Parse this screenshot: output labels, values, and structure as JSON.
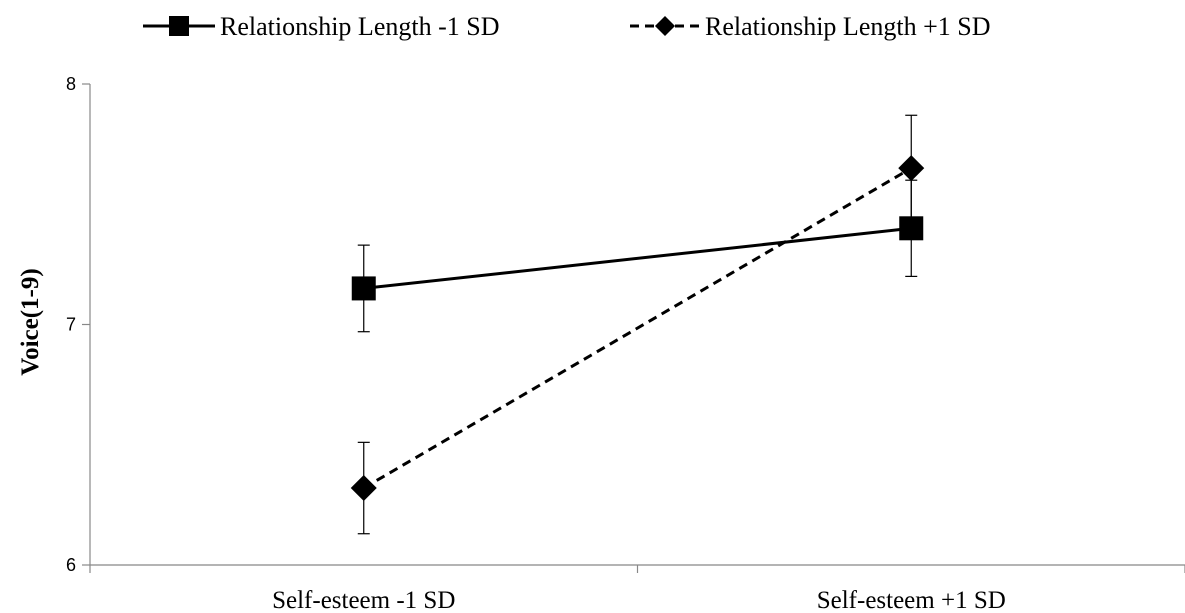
{
  "chart_data": {
    "type": "line",
    "title": "",
    "xlabel": "",
    "ylabel": "Voice(1-9)",
    "categories": [
      "Self-esteem -1 SD",
      "Self-esteem +1 SD"
    ],
    "ylim": [
      6,
      8
    ],
    "yticks": [
      "6",
      "7",
      "8"
    ],
    "grid": false,
    "legend_position": "top",
    "series": [
      {
        "name": "Relationship Length -1 SD",
        "values": [
          7.15,
          7.4
        ],
        "error": [
          0.18,
          0.2
        ],
        "marker": "square",
        "line": "solid",
        "color": "#000000"
      },
      {
        "name": "Relationship Length +1 SD",
        "values": [
          6.32,
          7.65
        ],
        "error": [
          0.19,
          0.22
        ],
        "marker": "diamond",
        "line": "dashed",
        "color": "#000000"
      }
    ]
  }
}
